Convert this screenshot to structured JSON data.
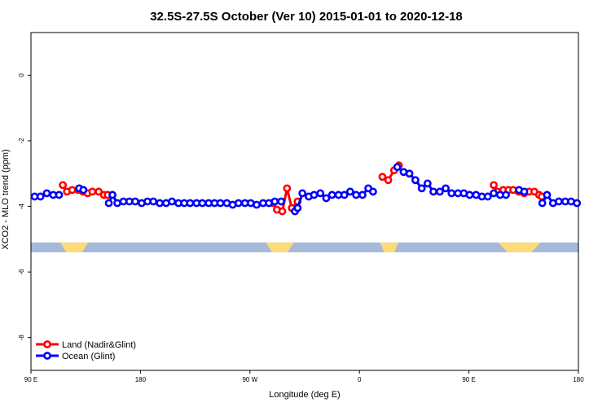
{
  "chart_data": {
    "type": "line",
    "title": "32.5S-27.5S October (Ver 10)   2015-01-01 to 2020-12-18",
    "xlabel": "Longitude (deg E)",
    "ylabel": "XCO2 - MLO trend (ppm)",
    "xlim": [
      90,
      540
    ],
    "ylim": [
      -9.0,
      1.3
    ],
    "x_ticks": [
      {
        "value": 90,
        "label": "90 E"
      },
      {
        "value": 180,
        "label": "180"
      },
      {
        "value": 270,
        "label": "90 W"
      },
      {
        "value": 360,
        "label": "0"
      },
      {
        "value": 450,
        "label": "90 E"
      },
      {
        "value": 540,
        "label": "180"
      }
    ],
    "y_ticks": [
      {
        "value": 0,
        "label": "0"
      },
      {
        "value": -2,
        "label": "-2"
      },
      {
        "value": -4,
        "label": "-4"
      },
      {
        "value": -6,
        "label": "-6"
      },
      {
        "value": -8,
        "label": "-8"
      }
    ],
    "legend_position": "bottom-left",
    "series": [
      {
        "name": "Land (Nadir&Glint)",
        "color": "#ff0000",
        "segments": [
          [
            [
              116.2,
              -3.35
            ],
            [
              119.6,
              -3.55
            ],
            [
              123.9,
              -3.5
            ],
            [
              128.7,
              -3.5
            ],
            [
              132.7,
              -3.55
            ],
            [
              136.6,
              -3.6
            ],
            [
              140.5,
              -3.55
            ],
            [
              145.7,
              -3.55
            ],
            [
              150,
              -3.65
            ],
            [
              153.1,
              -3.65
            ]
          ],
          [
            [
              288.9,
              -3.9
            ],
            [
              292.2,
              -4.1
            ],
            [
              296.6,
              -4.15
            ],
            [
              300.5,
              -3.45
            ],
            [
              304.4,
              -4.05
            ],
            [
              309.2,
              -3.85
            ]
          ],
          [
            [
              378.9,
              -3.1
            ],
            [
              383.7,
              -3.2
            ],
            [
              388.5,
              -2.9
            ],
            [
              392.4,
              -2.75
            ]
          ],
          [
            [
              470.4,
              -3.35
            ],
            [
              473.4,
              -3.55
            ],
            [
              478.2,
              -3.5
            ],
            [
              482.5,
              -3.5
            ],
            [
              486.4,
              -3.5
            ],
            [
              490.8,
              -3.55
            ],
            [
              495.5,
              -3.6
            ],
            [
              499.5,
              -3.55
            ],
            [
              503.8,
              -3.55
            ],
            [
              507.7,
              -3.65
            ],
            [
              509.9,
              -3.7
            ]
          ]
        ]
      },
      {
        "name": "Ocean (Glint)",
        "color": "#0000ff",
        "segments": [
          [
            [
              93.0,
              -3.7
            ],
            [
              97.8,
              -3.7
            ],
            [
              103.0,
              -3.6
            ],
            [
              108.3,
              -3.65
            ],
            [
              113.1,
              -3.65
            ]
          ],
          [
            [
              129.6,
              -3.45
            ],
            [
              133.1,
              -3.5
            ]
          ],
          [
            [
              154.0,
              -3.9
            ],
            [
              157.0,
              -3.65
            ],
            [
              161.0,
              -3.9
            ],
            [
              166.0,
              -3.85
            ],
            [
              170.9,
              -3.85
            ],
            [
              175.7,
              -3.85
            ],
            [
              181.0,
              -3.9
            ],
            [
              185.8,
              -3.85
            ],
            [
              190.6,
              -3.85
            ],
            [
              195.9,
              -3.9
            ],
            [
              201.1,
              -3.9
            ],
            [
              205.9,
              -3.85
            ],
            [
              211.2,
              -3.9
            ],
            [
              216.0,
              -3.9
            ],
            [
              220.8,
              -3.9
            ],
            [
              226.1,
              -3.9
            ],
            [
              230.9,
              -3.9
            ],
            [
              236.1,
              -3.9
            ],
            [
              240.9,
              -3.9
            ],
            [
              245.7,
              -3.9
            ],
            [
              251.0,
              -3.9
            ],
            [
              255.8,
              -3.95
            ],
            [
              260.6,
              -3.9
            ],
            [
              265.9,
              -3.9
            ],
            [
              270.7,
              -3.9
            ],
            [
              275.5,
              -3.95
            ],
            [
              280.8,
              -3.9
            ],
            [
              285.6,
              -3.9
            ],
            [
              290.4,
              -3.85
            ],
            [
              295.7,
              -3.85
            ]
          ],
          [
            [
              307.0,
              -4.15
            ],
            [
              309.2,
              -4.05
            ],
            [
              313.1,
              -3.6
            ],
            [
              318.3,
              -3.7
            ],
            [
              322.7,
              -3.65
            ],
            [
              327.9,
              -3.6
            ],
            [
              332.7,
              -3.75
            ],
            [
              337.5,
              -3.65
            ],
            [
              342.8,
              -3.65
            ],
            [
              347.6,
              -3.65
            ],
            [
              352.4,
              -3.55
            ],
            [
              357.3,
              -3.65
            ],
            [
              362.5,
              -3.65
            ],
            [
              367.3,
              -3.45
            ],
            [
              371.2,
              -3.55
            ]
          ],
          [
            [
              391.1,
              -2.8
            ],
            [
              396.3,
              -2.95
            ],
            [
              401.1,
              -3.0
            ],
            [
              406.0,
              -3.2
            ],
            [
              411.2,
              -3.45
            ],
            [
              416.0,
              -3.3
            ],
            [
              420.8,
              -3.55
            ],
            [
              426.1,
              -3.55
            ],
            [
              430.9,
              -3.45
            ],
            [
              435.7,
              -3.6
            ],
            [
              441.0,
              -3.6
            ],
            [
              445.8,
              -3.6
            ],
            [
              450.6,
              -3.65
            ],
            [
              455.9,
              -3.65
            ],
            [
              460.7,
              -3.7
            ],
            [
              465.5,
              -3.7
            ],
            [
              470.4,
              -3.6
            ],
            [
              475.6,
              -3.65
            ],
            [
              480.4,
              -3.65
            ]
          ],
          [
            [
              491.2,
              -3.5
            ],
            [
              495.5,
              -3.55
            ]
          ],
          [
            [
              510.3,
              -3.9
            ],
            [
              514.2,
              -3.65
            ],
            [
              519.1,
              -3.9
            ],
            [
              523.9,
              -3.85
            ],
            [
              529.2,
              -3.85
            ],
            [
              534.0,
              -3.85
            ],
            [
              538.8,
              -3.9
            ]
          ]
        ]
      }
    ]
  }
}
